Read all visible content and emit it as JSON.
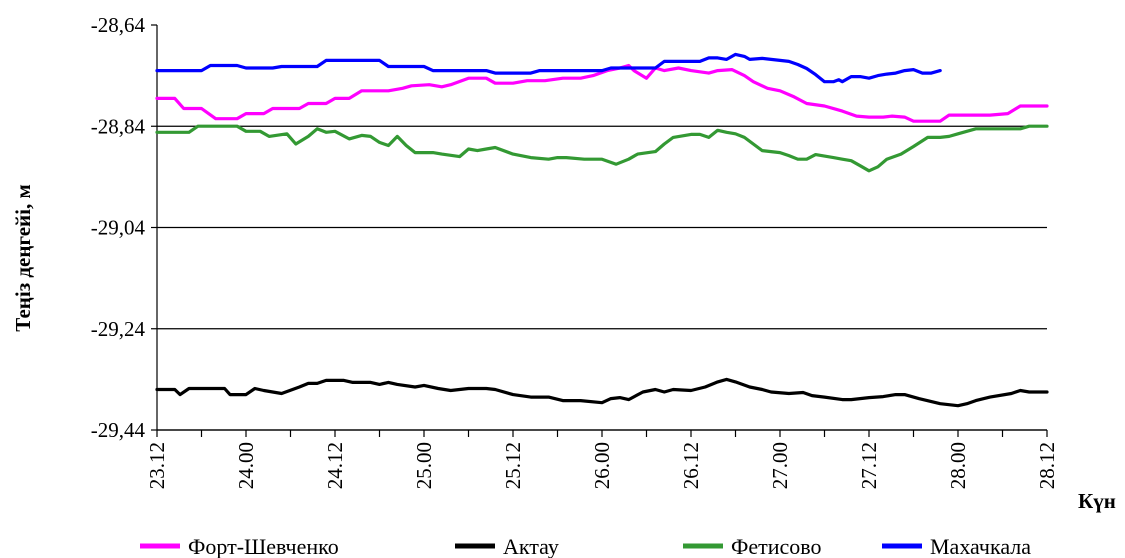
{
  "chart_data": {
    "type": "line",
    "title": "",
    "ylabel": "Теңіз деңгейі, м",
    "xlabel": "Күн",
    "ylim": [
      -29.44,
      -28.64
    ],
    "yticks": [
      "-28,64",
      "-28,84",
      "-29,04",
      "-29,24",
      "-29,44"
    ],
    "ytick_values": [
      -28.64,
      -28.84,
      -29.04,
      -29.24,
      -29.44
    ],
    "xlim": [
      23.12,
      28.12
    ],
    "xticks": [
      "23.12",
      "24.00",
      "24.12",
      "25.00",
      "25.12",
      "26.00",
      "26.12",
      "27.00",
      "27.12",
      "28.00",
      "28.12"
    ],
    "xtick_values": [
      23.12,
      23.62,
      24.12,
      24.62,
      25.12,
      25.62,
      26.12,
      26.62,
      27.12,
      27.62,
      28.12
    ],
    "grid": "horizontal",
    "legend": "bottom",
    "series": [
      {
        "name": "Форт-Шевченко",
        "color": "#ff00ff",
        "points": [
          [
            23.12,
            -28.785
          ],
          [
            23.22,
            -28.785
          ],
          [
            23.27,
            -28.805
          ],
          [
            23.37,
            -28.805
          ],
          [
            23.45,
            -28.825
          ],
          [
            23.57,
            -28.825
          ],
          [
            23.62,
            -28.815
          ],
          [
            23.72,
            -28.815
          ],
          [
            23.77,
            -28.805
          ],
          [
            23.92,
            -28.805
          ],
          [
            23.97,
            -28.795
          ],
          [
            24.07,
            -28.795
          ],
          [
            24.12,
            -28.785
          ],
          [
            24.2,
            -28.785
          ],
          [
            24.27,
            -28.77
          ],
          [
            24.42,
            -28.77
          ],
          [
            24.5,
            -28.765
          ],
          [
            24.55,
            -28.76
          ],
          [
            24.65,
            -28.758
          ],
          [
            24.72,
            -28.762
          ],
          [
            24.77,
            -28.758
          ],
          [
            24.87,
            -28.745
          ],
          [
            24.97,
            -28.745
          ],
          [
            25.02,
            -28.755
          ],
          [
            25.12,
            -28.755
          ],
          [
            25.2,
            -28.75
          ],
          [
            25.3,
            -28.75
          ],
          [
            25.4,
            -28.745
          ],
          [
            25.5,
            -28.745
          ],
          [
            25.57,
            -28.74
          ],
          [
            25.65,
            -28.73
          ],
          [
            25.72,
            -28.725
          ],
          [
            25.77,
            -28.72
          ],
          [
            25.8,
            -28.73
          ],
          [
            25.87,
            -28.745
          ],
          [
            25.92,
            -28.725
          ],
          [
            25.97,
            -28.73
          ],
          [
            26.05,
            -28.725
          ],
          [
            26.12,
            -28.73
          ],
          [
            26.22,
            -28.735
          ],
          [
            26.27,
            -28.73
          ],
          [
            26.35,
            -28.728
          ],
          [
            26.42,
            -28.74
          ],
          [
            26.47,
            -28.752
          ],
          [
            26.55,
            -28.765
          ],
          [
            26.62,
            -28.77
          ],
          [
            26.7,
            -28.782
          ],
          [
            26.77,
            -28.795
          ],
          [
            26.87,
            -28.8
          ],
          [
            26.97,
            -28.81
          ],
          [
            27.05,
            -28.82
          ],
          [
            27.12,
            -28.822
          ],
          [
            27.2,
            -28.822
          ],
          [
            27.25,
            -28.82
          ],
          [
            27.32,
            -28.822
          ],
          [
            27.37,
            -28.83
          ],
          [
            27.52,
            -28.83
          ],
          [
            27.57,
            -28.818
          ],
          [
            27.8,
            -28.818
          ],
          [
            27.9,
            -28.815
          ],
          [
            27.97,
            -28.8
          ],
          [
            28.12,
            -28.8
          ]
        ]
      },
      {
        "name": "Актау",
        "color": "#000000",
        "points": [
          [
            23.12,
            -29.36
          ],
          [
            23.22,
            -29.36
          ],
          [
            23.25,
            -29.37
          ],
          [
            23.3,
            -29.358
          ],
          [
            23.5,
            -29.358
          ],
          [
            23.53,
            -29.37
          ],
          [
            23.62,
            -29.37
          ],
          [
            23.67,
            -29.358
          ],
          [
            23.72,
            -29.362
          ],
          [
            23.82,
            -29.368
          ],
          [
            23.92,
            -29.355
          ],
          [
            23.97,
            -29.348
          ],
          [
            24.02,
            -29.348
          ],
          [
            24.07,
            -29.342
          ],
          [
            24.17,
            -29.342
          ],
          [
            24.22,
            -29.346
          ],
          [
            24.32,
            -29.346
          ],
          [
            24.37,
            -29.35
          ],
          [
            24.42,
            -29.346
          ],
          [
            24.47,
            -29.35
          ],
          [
            24.57,
            -29.355
          ],
          [
            24.62,
            -29.352
          ],
          [
            24.7,
            -29.358
          ],
          [
            24.77,
            -29.362
          ],
          [
            24.87,
            -29.358
          ],
          [
            24.97,
            -29.358
          ],
          [
            25.02,
            -29.36
          ],
          [
            25.12,
            -29.37
          ],
          [
            25.22,
            -29.375
          ],
          [
            25.32,
            -29.375
          ],
          [
            25.4,
            -29.382
          ],
          [
            25.5,
            -29.382
          ],
          [
            25.62,
            -29.386
          ],
          [
            25.67,
            -29.378
          ],
          [
            25.72,
            -29.376
          ],
          [
            25.77,
            -29.38
          ],
          [
            25.85,
            -29.365
          ],
          [
            25.92,
            -29.36
          ],
          [
            25.97,
            -29.365
          ],
          [
            26.02,
            -29.36
          ],
          [
            26.12,
            -29.362
          ],
          [
            26.2,
            -29.355
          ],
          [
            26.27,
            -29.345
          ],
          [
            26.32,
            -29.34
          ],
          [
            26.37,
            -29.345
          ],
          [
            26.45,
            -29.355
          ],
          [
            26.52,
            -29.36
          ],
          [
            26.57,
            -29.365
          ],
          [
            26.67,
            -29.368
          ],
          [
            26.75,
            -29.366
          ],
          [
            26.8,
            -29.372
          ],
          [
            26.87,
            -29.375
          ],
          [
            26.97,
            -29.38
          ],
          [
            27.02,
            -29.38
          ],
          [
            27.12,
            -29.376
          ],
          [
            27.2,
            -29.374
          ],
          [
            27.27,
            -29.37
          ],
          [
            27.32,
            -29.37
          ],
          [
            27.4,
            -29.378
          ],
          [
            27.52,
            -29.388
          ],
          [
            27.62,
            -29.392
          ],
          [
            27.67,
            -29.388
          ],
          [
            27.72,
            -29.382
          ],
          [
            27.8,
            -29.375
          ],
          [
            27.92,
            -29.368
          ],
          [
            27.97,
            -29.362
          ],
          [
            28.02,
            -29.365
          ],
          [
            28.12,
            -29.365
          ]
        ]
      },
      {
        "name": "Фетисово",
        "color": "#339933",
        "points": [
          [
            23.12,
            -28.852
          ],
          [
            23.3,
            -28.852
          ],
          [
            23.35,
            -28.84
          ],
          [
            23.57,
            -28.84
          ],
          [
            23.62,
            -28.85
          ],
          [
            23.7,
            -28.85
          ],
          [
            23.75,
            -28.86
          ],
          [
            23.85,
            -28.855
          ],
          [
            23.9,
            -28.875
          ],
          [
            23.97,
            -28.86
          ],
          [
            24.02,
            -28.845
          ],
          [
            24.07,
            -28.852
          ],
          [
            24.12,
            -28.85
          ],
          [
            24.2,
            -28.865
          ],
          [
            24.27,
            -28.858
          ],
          [
            24.32,
            -28.86
          ],
          [
            24.37,
            -28.872
          ],
          [
            24.42,
            -28.878
          ],
          [
            24.47,
            -28.86
          ],
          [
            24.52,
            -28.878
          ],
          [
            24.57,
            -28.892
          ],
          [
            24.67,
            -28.892
          ],
          [
            24.72,
            -28.895
          ],
          [
            24.82,
            -28.9
          ],
          [
            24.87,
            -28.885
          ],
          [
            24.92,
            -28.888
          ],
          [
            24.97,
            -28.885
          ],
          [
            25.02,
            -28.882
          ],
          [
            25.12,
            -28.895
          ],
          [
            25.22,
            -28.902
          ],
          [
            25.32,
            -28.905
          ],
          [
            25.37,
            -28.902
          ],
          [
            25.42,
            -28.902
          ],
          [
            25.52,
            -28.905
          ],
          [
            25.62,
            -28.905
          ],
          [
            25.7,
            -28.915
          ],
          [
            25.77,
            -28.905
          ],
          [
            25.82,
            -28.895
          ],
          [
            25.92,
            -28.89
          ],
          [
            25.97,
            -28.875
          ],
          [
            26.02,
            -28.862
          ],
          [
            26.12,
            -28.856
          ],
          [
            26.17,
            -28.856
          ],
          [
            26.22,
            -28.862
          ],
          [
            26.27,
            -28.848
          ],
          [
            26.32,
            -28.852
          ],
          [
            26.37,
            -28.855
          ],
          [
            26.42,
            -28.862
          ],
          [
            26.47,
            -28.875
          ],
          [
            26.52,
            -28.888
          ],
          [
            26.57,
            -28.89
          ],
          [
            26.62,
            -28.892
          ],
          [
            26.67,
            -28.898
          ],
          [
            26.72,
            -28.905
          ],
          [
            26.77,
            -28.905
          ],
          [
            26.82,
            -28.896
          ],
          [
            26.92,
            -28.902
          ],
          [
            26.97,
            -28.905
          ],
          [
            27.02,
            -28.908
          ],
          [
            27.07,
            -28.918
          ],
          [
            27.12,
            -28.928
          ],
          [
            27.17,
            -28.92
          ],
          [
            27.22,
            -28.905
          ],
          [
            27.3,
            -28.895
          ],
          [
            27.37,
            -28.88
          ],
          [
            27.45,
            -28.862
          ],
          [
            27.52,
            -28.862
          ],
          [
            27.57,
            -28.86
          ],
          [
            27.62,
            -28.855
          ],
          [
            27.67,
            -28.85
          ],
          [
            27.72,
            -28.845
          ],
          [
            27.97,
            -28.845
          ],
          [
            28.02,
            -28.84
          ],
          [
            28.12,
            -28.84
          ]
        ]
      },
      {
        "name": "Махачкала",
        "color": "#0000ff",
        "points": [
          [
            23.12,
            -28.73
          ],
          [
            23.37,
            -28.73
          ],
          [
            23.42,
            -28.72
          ],
          [
            23.57,
            -28.72
          ],
          [
            23.62,
            -28.725
          ],
          [
            23.77,
            -28.725
          ],
          [
            23.82,
            -28.722
          ],
          [
            24.02,
            -28.722
          ],
          [
            24.07,
            -28.71
          ],
          [
            24.37,
            -28.71
          ],
          [
            24.42,
            -28.722
          ],
          [
            24.62,
            -28.722
          ],
          [
            24.67,
            -28.73
          ],
          [
            24.97,
            -28.73
          ],
          [
            25.02,
            -28.735
          ],
          [
            25.22,
            -28.735
          ],
          [
            25.27,
            -28.73
          ],
          [
            25.62,
            -28.73
          ],
          [
            25.67,
            -28.725
          ],
          [
            25.92,
            -28.725
          ],
          [
            25.97,
            -28.712
          ],
          [
            26.17,
            -28.712
          ],
          [
            26.22,
            -28.705
          ],
          [
            26.27,
            -28.705
          ],
          [
            26.32,
            -28.708
          ],
          [
            26.37,
            -28.698
          ],
          [
            26.42,
            -28.702
          ],
          [
            26.45,
            -28.708
          ],
          [
            26.52,
            -28.706
          ],
          [
            26.57,
            -28.708
          ],
          [
            26.62,
            -28.71
          ],
          [
            26.67,
            -28.712
          ],
          [
            26.72,
            -28.718
          ],
          [
            26.77,
            -28.726
          ],
          [
            26.82,
            -28.738
          ],
          [
            26.87,
            -28.752
          ],
          [
            26.92,
            -28.752
          ],
          [
            26.95,
            -28.748
          ],
          [
            26.97,
            -28.752
          ],
          [
            27.02,
            -28.742
          ],
          [
            27.07,
            -28.742
          ],
          [
            27.12,
            -28.745
          ],
          [
            27.17,
            -28.74
          ],
          [
            27.22,
            -28.737
          ],
          [
            27.27,
            -28.735
          ],
          [
            27.32,
            -28.73
          ],
          [
            27.37,
            -28.728
          ],
          [
            27.42,
            -28.735
          ],
          [
            27.47,
            -28.735
          ],
          [
            27.52,
            -28.73
          ]
        ]
      }
    ]
  }
}
